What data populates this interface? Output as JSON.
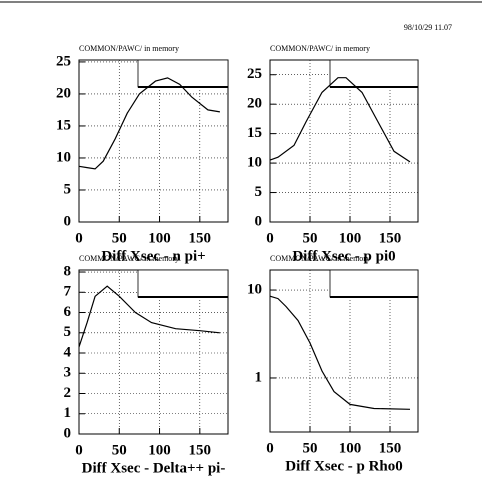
{
  "header": "98/10/29  11.07",
  "chart_data": [
    {
      "type": "line",
      "subtitle": "COMMON/PAWC/ in memory",
      "title": "Diff Xsec - n pi+",
      "x": [
        0,
        10,
        20,
        30,
        45,
        60,
        75,
        95,
        110,
        125,
        140,
        160,
        175
      ],
      "values": [
        8.7,
        8.5,
        8.3,
        9.5,
        13,
        17,
        20,
        22,
        22.5,
        21.5,
        19.5,
        17.5,
        17.2
      ],
      "xlim": [
        0,
        185
      ],
      "ylim": [
        0,
        25.3
      ],
      "xticks": [
        0,
        50,
        100,
        150
      ],
      "yticks": [
        0,
        5,
        10,
        15,
        20,
        25
      ],
      "grid": true
    },
    {
      "type": "line",
      "subtitle": "COMMON/PAWC/ in memory",
      "title": "Diff Xsec - p pi0",
      "x": [
        0,
        10,
        30,
        45,
        65,
        85,
        95,
        115,
        135,
        155,
        175
      ],
      "values": [
        10.5,
        11,
        13,
        17,
        22,
        24.5,
        24.5,
        22,
        17,
        12,
        10.2
      ],
      "xlim": [
        0,
        185
      ],
      "ylim": [
        0,
        27.5
      ],
      "xticks": [
        0,
        50,
        100,
        150
      ],
      "yticks": [
        0,
        5,
        10,
        15,
        20,
        25
      ],
      "grid": true
    },
    {
      "type": "line",
      "subtitle": "COMMON/PAWC/ in memory",
      "title": "Diff Xsec - Delta++ pi-",
      "x": [
        0,
        10,
        20,
        35,
        50,
        70,
        90,
        120,
        150,
        175
      ],
      "values": [
        4.3,
        5.5,
        6.8,
        7.3,
        6.8,
        6,
        5.5,
        5.2,
        5.1,
        5.0
      ],
      "xlim": [
        0,
        185
      ],
      "ylim": [
        0,
        8.1
      ],
      "xticks": [
        0,
        50,
        100,
        150
      ],
      "yticks": [
        0,
        1,
        2,
        3,
        4,
        5,
        6,
        7,
        8
      ],
      "grid": true
    },
    {
      "type": "line",
      "subtitle": "COMMON/PAWC/ in memory",
      "title": "Diff Xsec - p Rho0",
      "x": [
        0,
        10,
        20,
        35,
        50,
        65,
        80,
        100,
        130,
        175
      ],
      "values": [
        8.5,
        8,
        6.5,
        4.5,
        2.5,
        1.2,
        0.7,
        0.5,
        0.45,
        0.44
      ],
      "xlim": [
        0,
        185
      ],
      "ylim": [
        0.243,
        16.9
      ],
      "log_y": true,
      "xticks": [
        0,
        50,
        100,
        150
      ],
      "yticks": [
        1,
        10
      ],
      "grid": true
    }
  ]
}
